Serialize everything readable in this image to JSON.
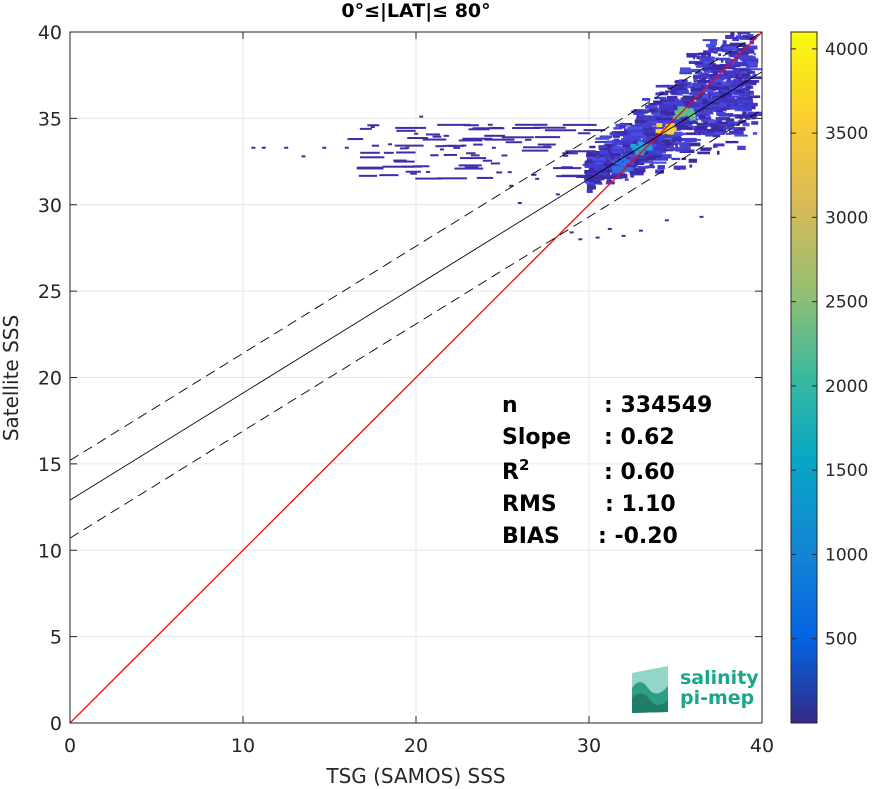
{
  "chart_data": {
    "type": "heatmap",
    "title": "0°≤|LAT|≤ 80°",
    "xlabel": "TSG (SAMOS) SSS",
    "ylabel": "Satellite SSS",
    "xlim": [
      0,
      40
    ],
    "ylim": [
      0,
      40
    ],
    "xticks": [
      "0",
      "10",
      "20",
      "30",
      "40"
    ],
    "yticks": [
      "0",
      "5",
      "10",
      "15",
      "20",
      "25",
      "30",
      "35",
      "40"
    ],
    "grid": true,
    "colorbar": {
      "range": [
        0,
        4100
      ],
      "ticks": [
        "500",
        "1000",
        "1500",
        "2000",
        "2500",
        "3000",
        "3500",
        "4000"
      ],
      "colormap": "parula"
    },
    "lines": [
      {
        "name": "one-to-one",
        "color": "#ff0000",
        "style": "solid",
        "slope": 1.0,
        "intercept": 0.0
      },
      {
        "name": "regression",
        "color": "#000000",
        "style": "solid",
        "slope": 0.62,
        "intercept": 12.9
      },
      {
        "name": "upper-bound",
        "color": "#000000",
        "style": "dashed",
        "slope": 0.62,
        "intercept": 15.2
      },
      {
        "name": "lower-bound",
        "color": "#000000",
        "style": "dashed",
        "slope": 0.62,
        "intercept": 10.7
      }
    ],
    "density_cores": [
      {
        "x": 34.5,
        "y": 34.5,
        "level": 3600
      },
      {
        "x": 35.5,
        "y": 35.3,
        "level": 2600
      },
      {
        "x": 33.0,
        "y": 33.3,
        "level": 1500
      },
      {
        "x": 32.0,
        "y": 32.3,
        "level": 900
      }
    ],
    "scatter_points": [
      [
        10.6,
        33.3
      ],
      [
        11.2,
        33.3
      ],
      [
        12.5,
        33.3
      ],
      [
        13.5,
        32.8
      ],
      [
        14.7,
        33.3
      ],
      [
        16.0,
        33.3
      ],
      [
        17.5,
        34.5
      ],
      [
        18.5,
        33.5
      ],
      [
        19.5,
        33.3
      ],
      [
        20.3,
        35.1
      ],
      [
        20.7,
        31.9
      ],
      [
        21.5,
        33.2
      ],
      [
        24.5,
        33.3
      ],
      [
        25.5,
        31.1
      ],
      [
        26.0,
        30.1
      ],
      [
        27.0,
        31.5
      ],
      [
        28.2,
        30.6
      ],
      [
        29.0,
        28.4
      ],
      [
        29.5,
        28.0
      ],
      [
        30.5,
        28.1
      ],
      [
        31.2,
        28.6
      ],
      [
        32.0,
        28.2
      ],
      [
        33.0,
        28.5
      ],
      [
        34.5,
        29.1
      ],
      [
        36.5,
        29.3
      ],
      [
        36.0,
        36.8
      ],
      [
        37.6,
        36.5
      ],
      [
        38.5,
        35.8
      ],
      [
        39.3,
        36.2
      ],
      [
        39.5,
        35.0
      ]
    ],
    "stats": [
      {
        "label": "n",
        "value": ": 334549"
      },
      {
        "label": "Slope",
        "value": ": 0.62"
      },
      {
        "label": "R",
        "sup": "2",
        "value": ": 0.60"
      },
      {
        "label": "RMS",
        "value": ": 1.10"
      },
      {
        "label": "BIAS",
        "value": ": -0.20"
      }
    ],
    "logo": {
      "line1": "salinity",
      "line2": "pi-mep"
    }
  }
}
